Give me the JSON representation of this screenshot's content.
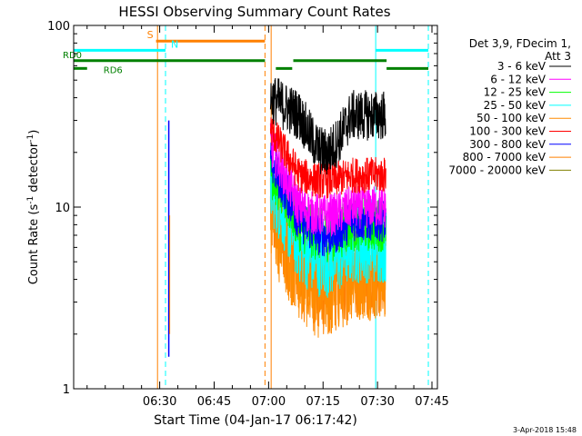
{
  "chart_data": {
    "type": "line",
    "title": "HESSI Observing Summary Count Rates",
    "xlabel": "Start Time (04-Jan-17 06:17:42)",
    "ylabel": "Count Rate (s⁻¹ detector⁻¹)",
    "ylabel_main": "Count Rate (s",
    "ylabel_sup1": "-1",
    "ylabel_mid": " detector",
    "ylabel_sup2": "-1",
    "ylabel_end": ")",
    "yscale": "log",
    "ylim": [
      1,
      100
    ],
    "xlim_minutes": [
      6.3,
      106.5
    ],
    "x_ticks": [
      {
        "label": "06:30",
        "minutes": 30
      },
      {
        "label": "06:45",
        "minutes": 45
      },
      {
        "label": "07:00",
        "minutes": 60
      },
      {
        "label": "07:15",
        "minutes": 75
      },
      {
        "label": "07:30",
        "minutes": 90
      },
      {
        "label": "07:45",
        "minutes": 105
      }
    ],
    "y_tick_labels": [
      {
        "label": "1",
        "value": 1
      },
      {
        "label": "10",
        "value": 10
      },
      {
        "label": "100",
        "value": 100
      }
    ],
    "legend_header": [
      "Det 3,9, FDecim 1,",
      "Att 3"
    ],
    "legend_position": "right",
    "series": [
      {
        "name": "3 - 6 keV",
        "color": "#000000",
        "early": 40,
        "late": 32,
        "dip": 20,
        "noise": 0.14
      },
      {
        "name": "6 - 12 keV",
        "color": "#ff00ff",
        "early": 22,
        "late": 10,
        "dip": 9,
        "noise": 0.12
      },
      {
        "name": "12 - 25 keV",
        "color": "#00ff00",
        "early": 16,
        "late": 8,
        "dip": 7,
        "noise": 0.15
      },
      {
        "name": "25 - 50 keV",
        "color": "#00ffff",
        "early": 13,
        "late": 6,
        "dip": 5,
        "noise": 0.2
      },
      {
        "name": "50 - 100 keV",
        "color": "#ff8c00",
        "early": 9,
        "late": 4.5,
        "dip": 3.5,
        "noise": 0.28
      },
      {
        "name": "100 - 300 keV",
        "color": "#ff0000",
        "early": 27,
        "late": 15,
        "dip": 14,
        "noise": 0.1
      },
      {
        "name": "300 - 800 keV",
        "color": "#0000ff",
        "early": 18,
        "late": 8.5,
        "dip": 7,
        "noise": 0.12
      },
      {
        "name": "800 - 7000 keV",
        "color": "#ff8000",
        "early": 9.5,
        "late": 4.5,
        "dip": 3.5,
        "noise": 0.26
      },
      {
        "name": "7000 - 20000 keV",
        "color": "#808000",
        "early": 1,
        "late": 1,
        "dip": 1,
        "noise": 0
      }
    ],
    "data_window_minutes": [
      60.5,
      92.3
    ],
    "spike_minute": 32.5,
    "flag_bars": [
      {
        "label": "S",
        "color": "#ff8000",
        "y_value": 82,
        "segments": [
          [
            29,
            59
          ]
        ]
      },
      {
        "label": "N",
        "color": "#00ffff",
        "y_value": 73,
        "segments": [
          [
            6.3,
            31.6
          ],
          [
            89.5,
            104
          ]
        ]
      },
      {
        "label": "RD0",
        "color": "#008000",
        "y_value": 64,
        "segments": [
          [
            6.3,
            59
          ],
          [
            66.8,
            92.5
          ]
        ]
      },
      {
        "label": "RD6",
        "color": "#008000",
        "y_value": 58,
        "segments": [
          [
            6.3,
            10
          ],
          [
            62,
            66.5
          ],
          [
            92.5,
            104
          ]
        ]
      }
    ],
    "vlines": [
      {
        "minutes": 29.4,
        "color": "#ff8000",
        "style": "solid"
      },
      {
        "minutes": 31.6,
        "color": "#00ffff",
        "style": "dashed"
      },
      {
        "minutes": 59,
        "color": "#ff8000",
        "style": "dashed"
      },
      {
        "minutes": 60.7,
        "color": "#ff8000",
        "style": "solid"
      },
      {
        "minutes": 89.5,
        "color": "#00ffff",
        "style": "solid"
      },
      {
        "minutes": 104,
        "color": "#00ffff",
        "style": "dashed"
      }
    ]
  },
  "footer": {
    "date_stamp": "3-Apr-2018 15:48"
  }
}
